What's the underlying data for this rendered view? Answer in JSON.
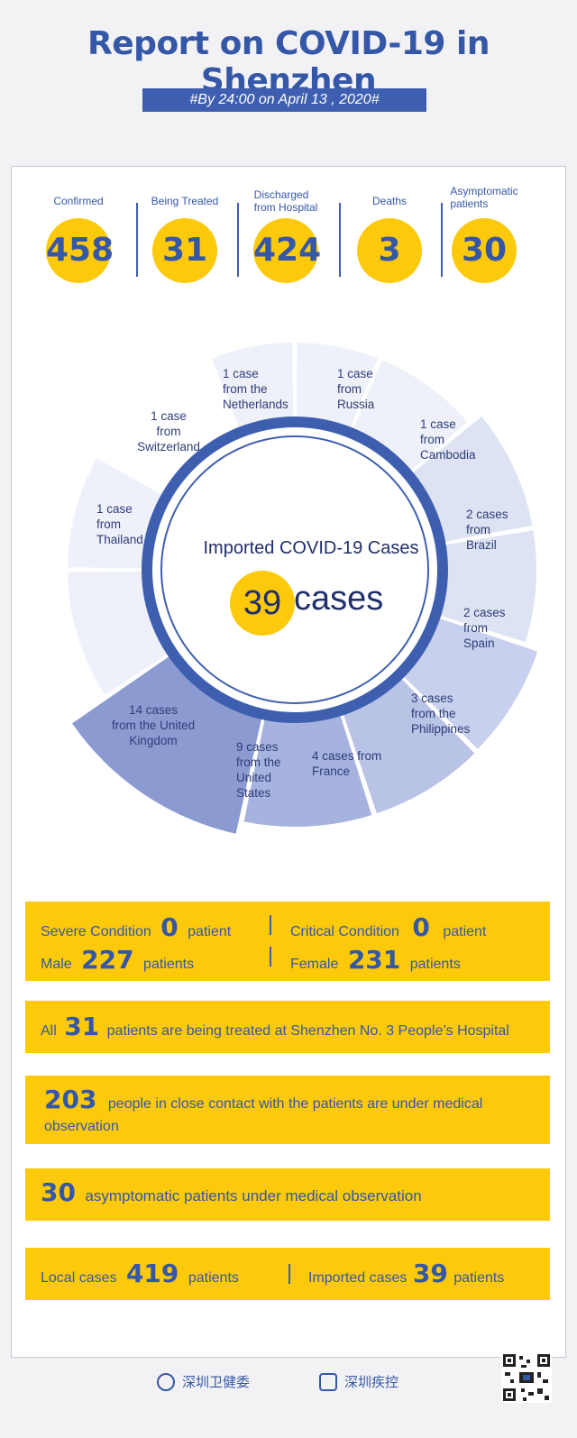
{
  "title": "Report on COVID-19 in Shenzhen",
  "date_banner": "#By 24:00 on April 13 , 2020#",
  "stats": [
    {
      "label": "Confirmed",
      "value": "458"
    },
    {
      "label": "Being Treated",
      "value": "31"
    },
    {
      "label": "Discharged\nfrom Hospital",
      "value": "424"
    },
    {
      "label": "Deaths",
      "value": "3"
    },
    {
      "label": "Asymptomatic\npatients",
      "value": "30"
    }
  ],
  "imported": {
    "title": "Imported COVID-19 Cases",
    "count": "39",
    "unit": "cases",
    "segments": [
      {
        "label": "1 case\nfrom the\nNetherlands",
        "cases": 1,
        "color": "#eef1f9"
      },
      {
        "label": "1 case\nfrom\nRussia",
        "cases": 1,
        "color": "#eef1f9"
      },
      {
        "label": "1 case\nfrom\nCambodia",
        "cases": 1,
        "color": "#eef1f9"
      },
      {
        "label": "2 cases\nfrom\nBrazil",
        "cases": 2,
        "color": "#dde3f3"
      },
      {
        "label": "2 cases\nfrom\nSpain",
        "cases": 2,
        "color": "#dde3f3"
      },
      {
        "label": "3 cases\nfrom the\nPhilippines",
        "cases": 3,
        "color": "#c7d0ec"
      },
      {
        "label": "4 cases from\nFrance",
        "cases": 4,
        "color": "#b8c3e6"
      },
      {
        "label": "9 cases\nfrom the\nUnited\nStates",
        "cases": 9,
        "color": "#a6b3de"
      },
      {
        "label": "14 cases\nfrom the United\nKingdom",
        "cases": 14,
        "color": "#8b9bd1"
      },
      {
        "label": "1 case\nfrom\nThailand",
        "cases": 1,
        "color": "#eef1f9"
      },
      {
        "label": "1 case\nfrom\nSwitzerland",
        "cases": 1,
        "color": "#eef1f9"
      }
    ]
  },
  "conditions": {
    "severe_label": "Severe Condition",
    "severe_value": "0",
    "severe_unit": "patient",
    "critical_label": "Critical Condition",
    "critical_value": "0",
    "critical_unit": "patient",
    "male_label": "Male",
    "male_value": "227",
    "male_unit": "patients",
    "female_label": "Female",
    "female_value": "231",
    "female_unit": "patients"
  },
  "hospital": {
    "prefix": "All",
    "value": "31",
    "text": "patients are being treated at Shenzhen No. 3 People’s Hospital"
  },
  "close_contact": {
    "value": "203",
    "text": "people in close contact with the patients are under medical",
    "text2": "observation"
  },
  "asymptomatic": {
    "value": "30",
    "text": "asymptomatic patients under medical observation"
  },
  "origin": {
    "local_label": "Local cases",
    "local_value": "419",
    "local_unit": "patients",
    "imported_label": "Imported cases",
    "imported_value": "39",
    "imported_unit": "patients"
  },
  "footer": {
    "org1": "深圳卫健委",
    "org2": "深圳疾控"
  },
  "colors": {
    "accent": "#3557a8",
    "yellow": "#fdc90b"
  }
}
